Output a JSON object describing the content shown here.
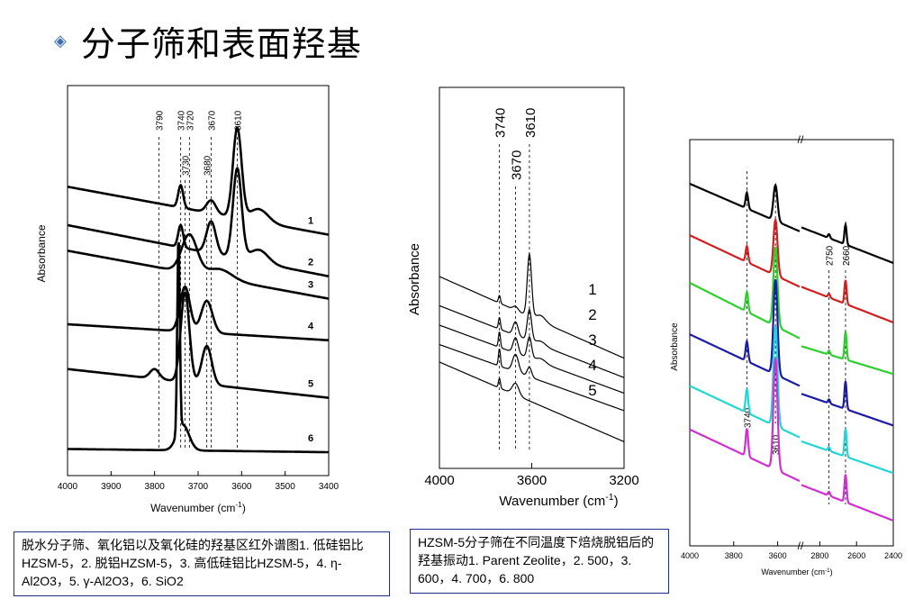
{
  "page": {
    "title": "分子筛和表面羟基",
    "bullet_icon": "diamond-bullet-icon",
    "accent_color": "#3a6fb0"
  },
  "captions": [
    "脱水分子筛、氧化铝以及氧化硅的羟基区红外谱图1. 低硅铝比HZSM-5，2. 脱铝HZSM-5，3. 高低硅铝比HZSM-5，4. η-Al2O3，5. γ-Al2O3，6. SiO2",
    "HZSM-5分子筛在不同温度下焙烧脱铝后的羟基振动1. Parent Zeolite，2. 500，3. 600，4. 700，6. 800"
  ],
  "chart_data": [
    {
      "type": "line",
      "xlabel": "Wavenumber (cm-1)",
      "ylabel": "Absorbance",
      "xlim": [
        4000,
        3400
      ],
      "xticks": [
        4000,
        3900,
        3800,
        3700,
        3600,
        3500,
        3400
      ],
      "tick_labels": [
        "4000",
        "3900",
        "3800",
        "3700",
        "3600",
        "3500",
        "3400"
      ],
      "peak_lines": [
        {
          "x": 3790,
          "label": "3790",
          "pos": "top"
        },
        {
          "x": 3740,
          "label": "3740",
          "pos": "top"
        },
        {
          "x": 3720,
          "label": "3720",
          "pos": "top"
        },
        {
          "x": 3670,
          "label": "3670",
          "pos": "top"
        },
        {
          "x": 3610,
          "label": "3610",
          "pos": "top"
        },
        {
          "x": 3730,
          "label": "3730",
          "pos": "mid"
        },
        {
          "x": 3680,
          "label": "3680",
          "pos": "mid"
        }
      ],
      "series": [
        {
          "name": "1",
          "baseline": [
            0.83,
            0.68
          ],
          "peaks": [
            [
              3740,
              0.07,
              8
            ],
            [
              3670,
              0.04,
              15
            ],
            [
              3610,
              0.28,
              14
            ],
            [
              3560,
              0.04,
              30
            ]
          ]
        },
        {
          "name": "2",
          "baseline": [
            0.71,
            0.55
          ],
          "peaks": [
            [
              3740,
              0.07,
              8
            ],
            [
              3670,
              0.1,
              15
            ],
            [
              3610,
              0.28,
              14
            ],
            [
              3560,
              0.04,
              30
            ]
          ]
        },
        {
          "name": "3",
          "baseline": [
            0.63,
            0.48
          ],
          "peaks": [
            [
              3720,
              0.12,
              25
            ],
            [
              3650,
              0.03,
              40
            ]
          ]
        },
        {
          "name": "4",
          "baseline": [
            0.4,
            0.35
          ],
          "peaks": [
            [
              3730,
              0.14,
              16
            ],
            [
              3680,
              0.1,
              18
            ]
          ]
        },
        {
          "name": "5",
          "baseline": [
            0.26,
            0.17
          ],
          "peaks": [
            [
              3800,
              0.03,
              15
            ],
            [
              3730,
              0.28,
              14
            ],
            [
              3680,
              0.12,
              16
            ]
          ]
        },
        {
          "name": "6",
          "baseline": [
            0.01,
            0.0
          ],
          "peaks": [
            [
              3745,
              0.62,
              4
            ],
            [
              3735,
              0.08,
              20
            ]
          ]
        }
      ],
      "series_labels": [
        "1",
        "2",
        "3",
        "4",
        "5",
        "6"
      ]
    },
    {
      "type": "line",
      "xlabel": "Wavenumber (cm-1)",
      "ylabel": "Absorbance",
      "xlim": [
        4000,
        3200
      ],
      "xticks": [
        4000,
        3600,
        3200
      ],
      "tick_labels": [
        "4000",
        "3600",
        "3200"
      ],
      "peak_lines": [
        {
          "x": 3740,
          "label": "3740",
          "pos": "top"
        },
        {
          "x": 3610,
          "label": "3610",
          "pos": "top"
        },
        {
          "x": 3670,
          "label": "3670",
          "pos": "mid"
        }
      ],
      "series": [
        {
          "name": "1",
          "baseline": [
            0.85,
            0.43
          ],
          "peaks": [
            [
              3740,
              0.04,
              6
            ],
            [
              3670,
              0.02,
              15
            ],
            [
              3610,
              0.32,
              13
            ],
            [
              3560,
              0.03,
              30
            ]
          ]
        },
        {
          "name": "2",
          "baseline": [
            0.7,
            0.33
          ],
          "peaks": [
            [
              3740,
              0.06,
              6
            ],
            [
              3670,
              0.07,
              15
            ],
            [
              3610,
              0.16,
              13
            ],
            [
              3560,
              0.02,
              30
            ]
          ]
        },
        {
          "name": "3",
          "baseline": [
            0.6,
            0.25
          ],
          "peaks": [
            [
              3740,
              0.08,
              6
            ],
            [
              3670,
              0.08,
              15
            ],
            [
              3610,
              0.11,
              13
            ],
            [
              3560,
              0.02,
              30
            ]
          ]
        },
        {
          "name": "4",
          "baseline": [
            0.5,
            0.16
          ],
          "peaks": [
            [
              3740,
              0.09,
              6
            ],
            [
              3670,
              0.09,
              18
            ],
            [
              3610,
              0.05,
              13
            ]
          ]
        },
        {
          "name": "5",
          "baseline": [
            0.41,
            0.0
          ],
          "peaks": [
            [
              3740,
              0.05,
              6
            ],
            [
              3670,
              0.06,
              20
            ]
          ]
        }
      ],
      "series_labels": [
        "1",
        "2",
        "3",
        "4",
        "5"
      ]
    },
    {
      "type": "line",
      "ylabel": "Absorbance",
      "xlabel": "Wavenumber (cm-1)",
      "xlim_left": [
        4000,
        3500
      ],
      "xlim_right": [
        2900,
        2400
      ],
      "xticks": [
        "4000",
        "3800",
        "3600",
        "2800",
        "2600",
        "2400"
      ],
      "peak_labels": [
        "3740",
        "3610",
        "2750",
        "2660"
      ],
      "series": [
        {
          "color": "#000000",
          "left": [
            0.9,
            0.78,
            [
              [
                3740,
                0.04,
                8
              ],
              [
                3610,
                0.09,
                13
              ]
            ]
          ],
          "right": [
            0.79,
            0.7,
            [
              [
                2750,
                0.01,
                8
              ],
              [
                2660,
                0.05,
                8
              ]
            ]
          ]
        },
        {
          "color": "#d21e1e",
          "left": [
            0.77,
            0.64,
            [
              [
                3740,
                0.04,
                8
              ],
              [
                3610,
                0.14,
                13
              ]
            ]
          ],
          "right": [
            0.64,
            0.55,
            [
              [
                2750,
                0.01,
                8
              ],
              [
                2660,
                0.06,
                8
              ]
            ]
          ]
        },
        {
          "color": "#2bd12b",
          "left": [
            0.65,
            0.51,
            [
              [
                3740,
                0.05,
                8
              ],
              [
                3610,
                0.2,
                13
              ]
            ]
          ],
          "right": [
            0.49,
            0.42,
            [
              [
                2750,
                0.01,
                8
              ],
              [
                2660,
                0.07,
                8
              ]
            ]
          ]
        },
        {
          "color": "#1a1aa6",
          "left": [
            0.52,
            0.39,
            [
              [
                3740,
                0.05,
                8
              ],
              [
                3610,
                0.24,
                13
              ]
            ]
          ],
          "right": [
            0.37,
            0.29,
            [
              [
                2750,
                0.01,
                8
              ],
              [
                2660,
                0.07,
                8
              ]
            ]
          ]
        },
        {
          "color": "#22d6d6",
          "left": [
            0.39,
            0.26,
            [
              [
                3740,
                0.06,
                8
              ],
              [
                3610,
                0.25,
                13
              ]
            ]
          ],
          "right": [
            0.25,
            0.17,
            [
              [
                2750,
                0.01,
                8
              ],
              [
                2660,
                0.07,
                8
              ]
            ]
          ]
        },
        {
          "color": "#d12fd1",
          "left": [
            0.28,
            0.15,
            [
              [
                3740,
                0.07,
                8
              ],
              [
                3610,
                0.28,
                13
              ]
            ]
          ],
          "right": [
            0.14,
            0.05,
            [
              [
                2750,
                0.01,
                8
              ],
              [
                2660,
                0.07,
                8
              ]
            ]
          ]
        }
      ]
    }
  ]
}
